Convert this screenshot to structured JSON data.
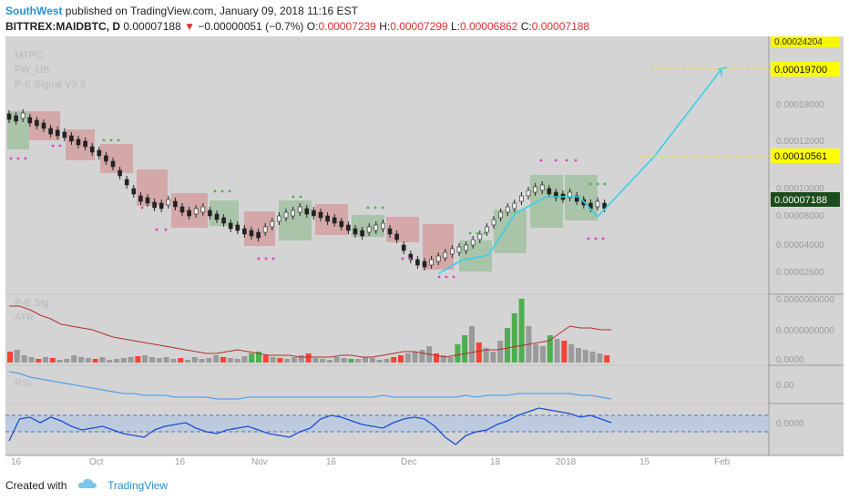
{
  "header": {
    "author": "SouthWest",
    "published": "published on TradingView.com, January 09, 2018 11:16 EST",
    "symbol": "BITTREX:MAIDBTC, D",
    "price": "0.00007188",
    "change": "−0.00000051 (−0.7%)",
    "o_label": "O:",
    "o_value": "0.00007239",
    "h_label": "H:",
    "h_value": "0.00007299",
    "l_label": "L:",
    "l_value": "0.00006862",
    "c_label": "C:",
    "c_value": "0.00007188"
  },
  "indicators": {
    "legend1": "MTPC",
    "legend2": "FW_UB",
    "legend3": "P-E Signal V3.3",
    "atr_label1": "P-E Sig",
    "atr_label2": "ATR",
    "rsi_label": "RSI"
  },
  "price_axis": {
    "labels": [
      "0.00024204",
      "0.00018000",
      "0.00012000",
      "0.00010000",
      "0.00008000",
      "0.00004000",
      "0.00002600"
    ],
    "marker_target": "0.00019700",
    "marker_mid": "0.00010561",
    "marker_current": "0.00007188"
  },
  "atr_axis": {
    "labels": [
      "0.0000000000",
      "0.0000000000",
      "0.0000"
    ]
  },
  "rsi_axis": {
    "labels": [
      "0.00"
    ]
  },
  "osc_axis": {
    "labels": [
      "0.0000"
    ]
  },
  "time_axis": {
    "labels": [
      "16",
      "Oct",
      "16",
      "Nov",
      "16",
      "Dec",
      "18",
      "2018",
      "15",
      "Feb"
    ]
  },
  "footer": {
    "created_with": "Created with",
    "brand": "TradingView"
  },
  "colors": {
    "up": "#4caf50",
    "down": "#f44336",
    "cyan": "#39d0e8",
    "marker_yellow": "#ffff00",
    "current_bg": "#1b5e20"
  }
}
